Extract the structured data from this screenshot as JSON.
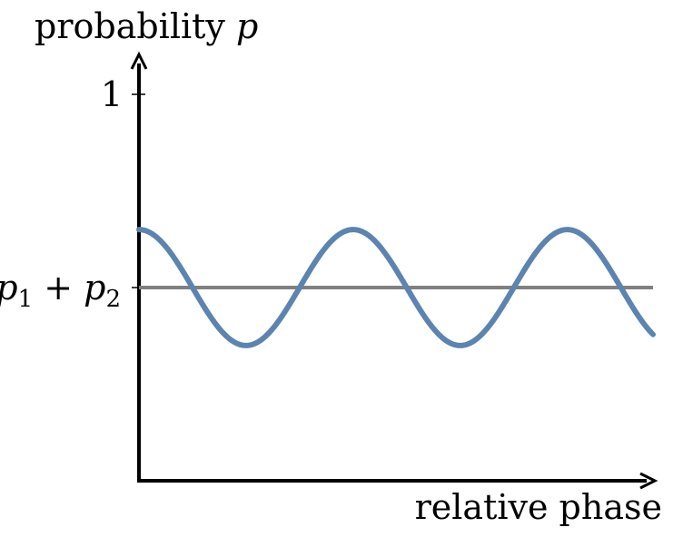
{
  "chart_data": {
    "type": "line",
    "title": "",
    "ylabel_text": "probability ",
    "ylabel_var": "p",
    "xlabel": "relative phase",
    "yticks": [
      {
        "value": 1,
        "label": "1"
      },
      {
        "value": 0.5,
        "label_parts": [
          "p",
          "1",
          " + ",
          "p",
          "2"
        ]
      }
    ],
    "ylim": [
      0,
      1
    ],
    "xlim_periods": [
      0,
      2.4
    ],
    "series": [
      {
        "kind": "cosine",
        "mean": 0.5,
        "amplitude": 0.15,
        "periods": 2.4,
        "color": "#5b84b1"
      },
      {
        "kind": "constant",
        "value": 0.5,
        "color": "#808080"
      }
    ]
  }
}
